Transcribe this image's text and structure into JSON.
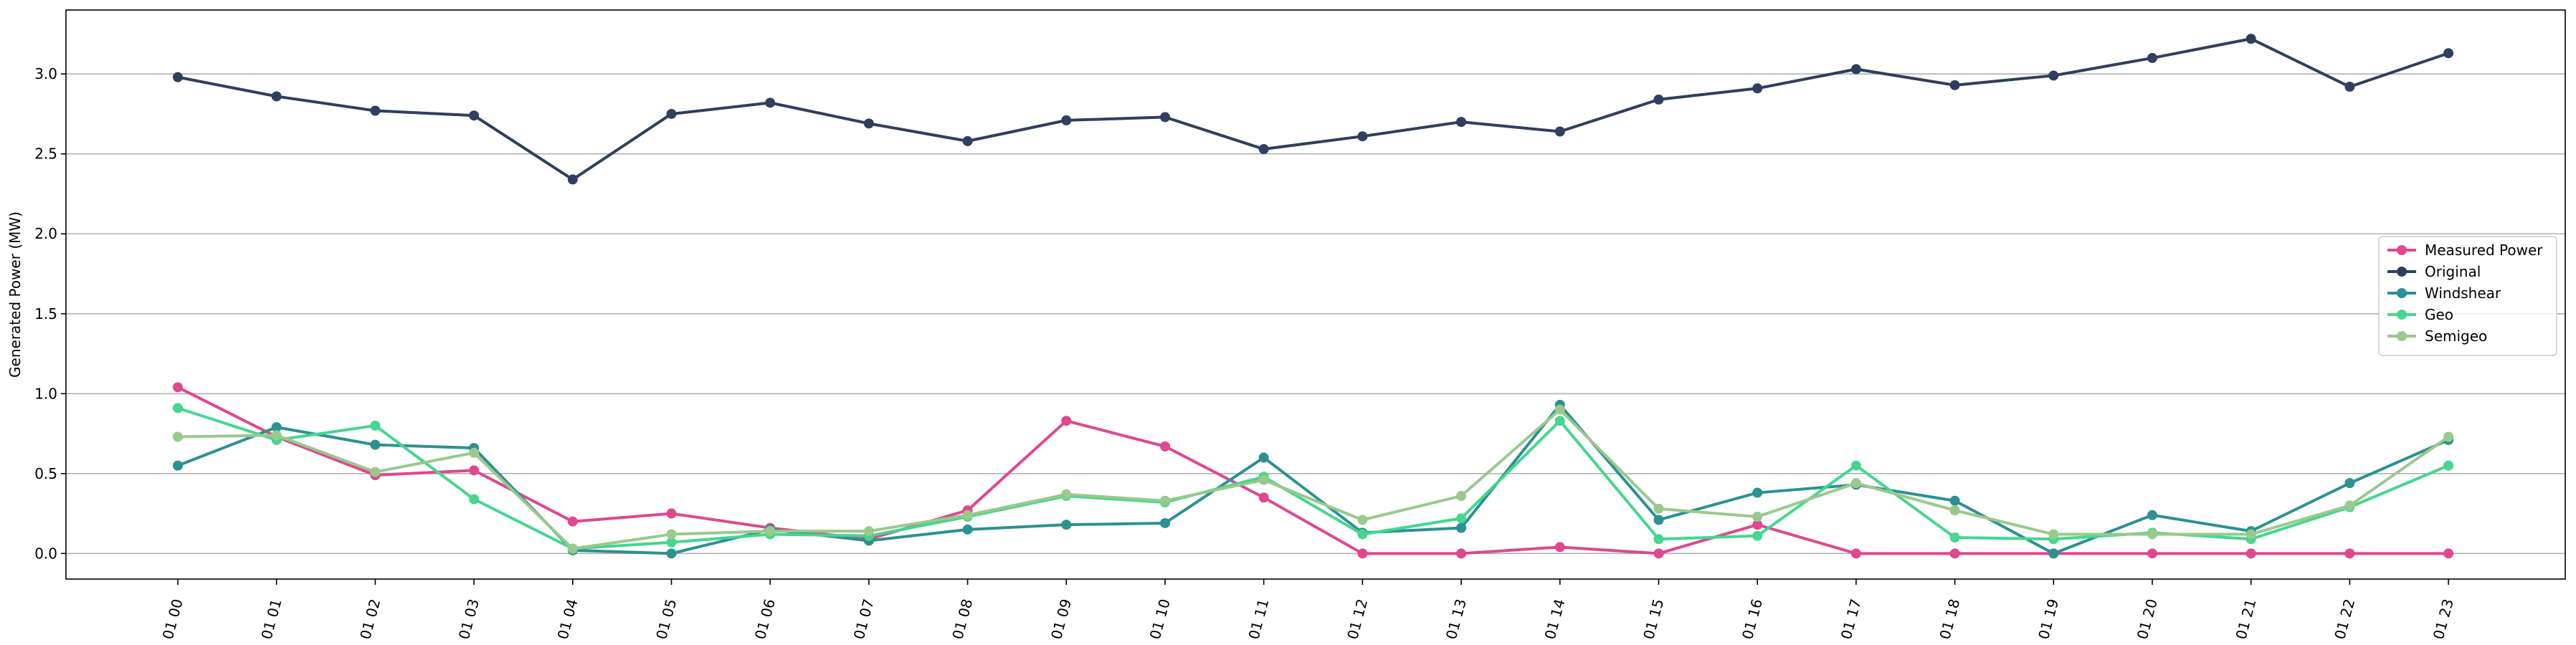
{
  "chart_data": {
    "type": "line",
    "ylabel": "Generated Power (MW)",
    "xlabel": "",
    "ylim": [
      -0.16,
      3.4
    ],
    "yticks": [
      0.0,
      0.5,
      1.0,
      1.5,
      2.0,
      2.5,
      3.0
    ],
    "ytick_labels": [
      "0.0",
      "0.5",
      "1.0",
      "1.5",
      "2.0",
      "2.5",
      "3.0"
    ],
    "grid": "horizontal",
    "legend_position": "center-right",
    "categories": [
      "01 00",
      "01 01",
      "01 02",
      "01 03",
      "01 04",
      "01 05",
      "01 06",
      "01 07",
      "01 08",
      "01 09",
      "01 10",
      "01 11",
      "01 12",
      "01 13",
      "01 14",
      "01 15",
      "01 16",
      "01 17",
      "01 18",
      "01 19",
      "01 20",
      "01 21",
      "01 22",
      "01 23"
    ],
    "series": [
      {
        "name": "Measured Power",
        "color": "#e0478f",
        "values": [
          1.04,
          0.73,
          0.49,
          0.52,
          0.2,
          0.25,
          0.16,
          0.09,
          0.27,
          0.83,
          0.67,
          0.35,
          0.0,
          0.0,
          0.04,
          0.0,
          0.18,
          0.0,
          0.0,
          0.0,
          0.0,
          0.0,
          0.0,
          0.0
        ]
      },
      {
        "name": "Original",
        "color": "#2e3f5f",
        "values": [
          2.98,
          2.86,
          2.77,
          2.74,
          2.34,
          2.75,
          2.82,
          2.69,
          2.58,
          2.71,
          2.73,
          2.53,
          2.61,
          2.7,
          2.64,
          2.84,
          2.91,
          3.03,
          2.93,
          2.99,
          3.1,
          3.22,
          2.92,
          3.13
        ]
      },
      {
        "name": "Windshear",
        "color": "#2b9191",
        "values": [
          0.55,
          0.79,
          0.68,
          0.66,
          0.02,
          0.0,
          0.15,
          0.08,
          0.15,
          0.18,
          0.19,
          0.6,
          0.13,
          0.16,
          0.93,
          0.21,
          0.38,
          0.43,
          0.33,
          0.0,
          0.24,
          0.14,
          0.44,
          0.71
        ]
      },
      {
        "name": "Geo",
        "color": "#45d68f",
        "values": [
          0.91,
          0.71,
          0.8,
          0.34,
          0.03,
          0.07,
          0.12,
          0.11,
          0.23,
          0.36,
          0.32,
          0.48,
          0.12,
          0.22,
          0.83,
          0.09,
          0.11,
          0.55,
          0.1,
          0.09,
          0.13,
          0.09,
          0.29,
          0.55
        ]
      },
      {
        "name": "Semigeo",
        "color": "#9ac98c",
        "values": [
          0.73,
          0.74,
          0.51,
          0.63,
          0.03,
          0.12,
          0.14,
          0.14,
          0.24,
          0.37,
          0.33,
          0.46,
          0.21,
          0.36,
          0.9,
          0.28,
          0.23,
          0.44,
          0.27,
          0.12,
          0.12,
          0.12,
          0.3,
          0.73
        ]
      }
    ]
  }
}
